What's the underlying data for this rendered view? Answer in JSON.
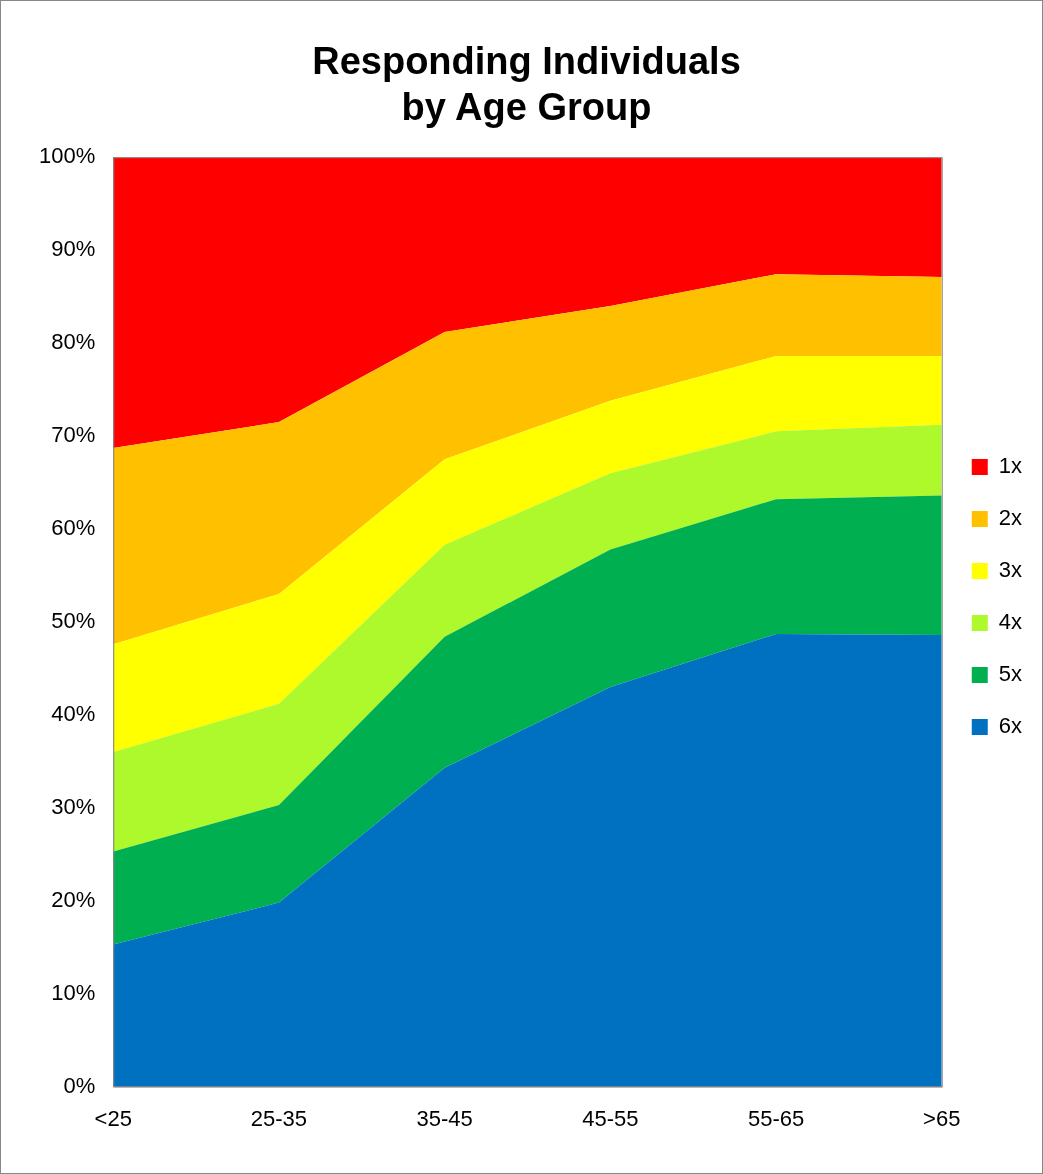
{
  "chart_data": {
    "type": "area",
    "title": "Responding Individuals by Age Group",
    "stacked": true,
    "legend": "right",
    "grid": false,
    "categories": [
      "<25",
      "25-35",
      "35-45",
      "45-55",
      "55-65",
      ">65"
    ],
    "ylim": [
      0,
      100
    ],
    "yticks": [
      {
        "value": 0,
        "label": "0%"
      },
      {
        "value": 10,
        "label": "10%"
      },
      {
        "value": 20,
        "label": "20%"
      },
      {
        "value": 30,
        "label": "30%"
      },
      {
        "value": 40,
        "label": "40%"
      },
      {
        "value": 50,
        "label": "50%"
      },
      {
        "value": 60,
        "label": "60%"
      },
      {
        "value": 70,
        "label": "70%"
      },
      {
        "value": 80,
        "label": "80%"
      },
      {
        "value": 90,
        "label": "90%"
      },
      {
        "value": 100,
        "label": "100%"
      }
    ],
    "series": [
      {
        "name": "6x",
        "color": "#0070c0",
        "values": [
          15.3,
          19.8,
          34.3,
          43.0,
          48.7,
          48.6
        ]
      },
      {
        "name": "5x",
        "color": "#00b050",
        "values": [
          10.0,
          10.5,
          14.1,
          14.8,
          14.5,
          15.0
        ]
      },
      {
        "name": "4x",
        "color": "#adf92b",
        "values": [
          10.7,
          10.9,
          9.9,
          8.2,
          7.3,
          7.6
        ]
      },
      {
        "name": "3x",
        "color": "#ffff00",
        "values": [
          11.6,
          11.8,
          9.2,
          7.8,
          8.1,
          7.4
        ]
      },
      {
        "name": "2x",
        "color": "#ffc000",
        "values": [
          21.1,
          18.5,
          13.7,
          10.2,
          8.8,
          8.5
        ]
      },
      {
        "name": "1x",
        "color": "#ff0000",
        "values": [
          31.3,
          28.5,
          18.8,
          16.0,
          12.6,
          12.9
        ]
      }
    ]
  }
}
